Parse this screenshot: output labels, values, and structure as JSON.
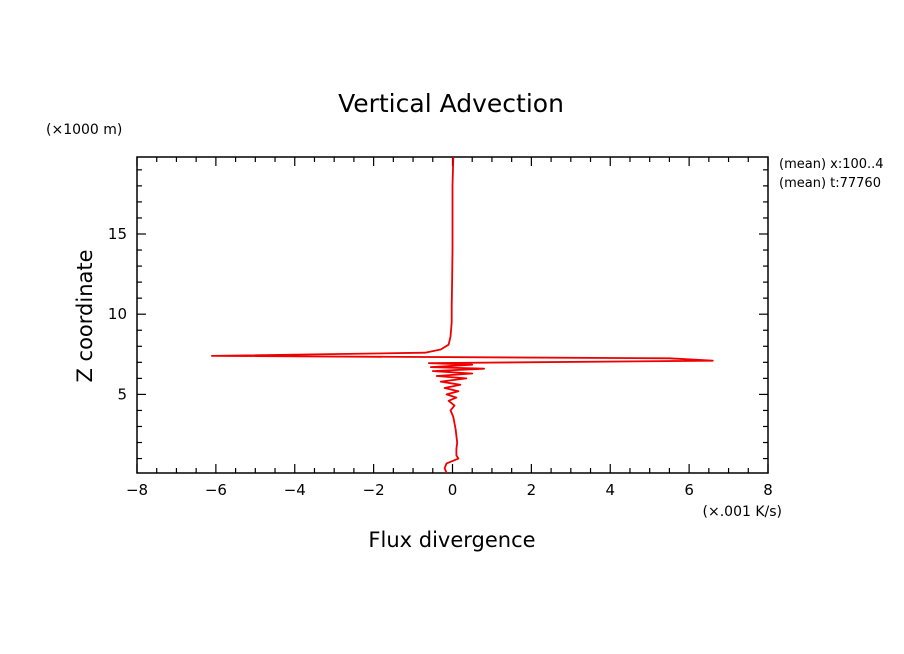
{
  "chart_data": {
    "type": "line",
    "title": "Vertical Advection",
    "xlabel": "Flux divergence",
    "x_unit": "(×.001 K/s)",
    "ylabel": "Z coordinate",
    "y_unit": "(×1000 m)",
    "annotations": [
      "(mean) x:100..4",
      "(mean) t:77760"
    ],
    "xlim": [
      -8,
      8
    ],
    "ylim": [
      0.1,
      19.8
    ],
    "x_ticks": [
      -8,
      -6,
      -4,
      -2,
      0,
      2,
      4,
      6,
      8
    ],
    "y_ticks": [
      5,
      10,
      15
    ],
    "grid": false,
    "line_color": "#ee0000",
    "series": [
      {
        "points": [
          [
            -0.15,
            0.1
          ],
          [
            -0.2,
            0.4
          ],
          [
            -0.15,
            0.7
          ],
          [
            0.05,
            0.9
          ],
          [
            0.15,
            1.0
          ],
          [
            0.1,
            1.2
          ],
          [
            0.1,
            1.6
          ],
          [
            0.12,
            2.0
          ],
          [
            0.1,
            2.4
          ],
          [
            0.08,
            2.8
          ],
          [
            0.05,
            3.2
          ],
          [
            0.02,
            3.6
          ],
          [
            -0.05,
            4.0
          ],
          [
            0.05,
            4.3
          ],
          [
            -0.1,
            4.6
          ],
          [
            0.1,
            4.8
          ],
          [
            -0.15,
            5.0
          ],
          [
            0.15,
            5.2
          ],
          [
            -0.2,
            5.4
          ],
          [
            0.2,
            5.6
          ],
          [
            -0.3,
            5.8
          ],
          [
            0.35,
            6.0
          ],
          [
            -0.4,
            6.15
          ],
          [
            0.5,
            6.3
          ],
          [
            -0.5,
            6.45
          ],
          [
            0.8,
            6.6
          ],
          [
            -0.55,
            6.7
          ],
          [
            0.5,
            6.85
          ],
          [
            -0.6,
            6.95
          ],
          [
            6.6,
            7.1
          ],
          [
            5.5,
            7.25
          ],
          [
            -6.1,
            7.4
          ],
          [
            -0.7,
            7.6
          ],
          [
            -0.3,
            7.8
          ],
          [
            -0.1,
            8.1
          ],
          [
            -0.05,
            8.6
          ],
          [
            -0.02,
            9.5
          ],
          [
            -0.02,
            10.5
          ],
          [
            -0.01,
            12.0
          ],
          [
            0.0,
            14.0
          ],
          [
            0.0,
            16.0
          ],
          [
            0.0,
            18.0
          ],
          [
            0.02,
            19.8
          ]
        ]
      }
    ]
  }
}
